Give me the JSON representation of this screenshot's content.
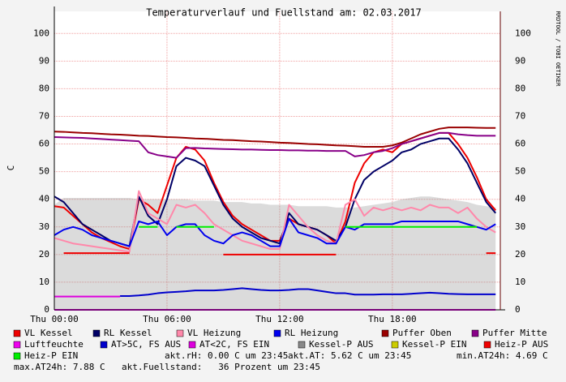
{
  "chart_data": {
    "type": "line",
    "title": "Temperaturverlauf und Fuellstand am: 02.03.2017",
    "y_label": "C",
    "watermark": "RRDTOOL / TOBI OETIKER",
    "x": [
      0,
      0.5,
      1,
      1.5,
      2,
      2.5,
      3,
      3.5,
      4,
      4.5,
      5,
      5.5,
      6,
      6.5,
      7,
      7.5,
      8,
      8.5,
      9,
      9.5,
      10,
      10.5,
      11,
      11.5,
      12,
      12.5,
      13,
      13.5,
      14,
      14.5,
      15,
      15.5,
      16,
      16.5,
      17,
      17.5,
      18,
      18.5,
      19,
      19.5,
      20,
      20.5,
      21,
      21.5,
      22,
      22.5,
      23,
      23.5
    ],
    "xlim": [
      0,
      23.75
    ],
    "xticks": [
      {
        "value": 0,
        "label": "Thu 00:00"
      },
      {
        "value": 6,
        "label": "Thu 06:00"
      },
      {
        "value": 12,
        "label": "Thu 12:00"
      },
      {
        "value": 18,
        "label": "Thu 18:00"
      }
    ],
    "ylim": [
      0,
      108
    ],
    "yticks": [
      0,
      10,
      20,
      30,
      40,
      50,
      60,
      70,
      80,
      90,
      100
    ],
    "grid": true,
    "series": [
      {
        "name": "VL Kessel",
        "color": "#ee0000",
        "values": [
          37.5,
          37,
          34,
          31,
          28,
          26,
          24.5,
          23,
          22,
          40,
          38,
          35,
          45,
          55,
          59,
          58,
          54,
          46,
          39,
          34,
          31,
          29,
          27,
          25,
          25,
          33,
          31,
          30,
          29,
          27,
          24,
          32,
          46,
          53,
          57,
          58,
          57,
          60,
          61,
          62,
          63,
          64,
          64,
          60,
          55,
          48,
          40,
          36
        ]
      },
      {
        "name": "RL Kessel",
        "color": "#000066",
        "values": [
          41,
          39,
          35,
          31,
          29,
          27,
          25,
          24,
          23,
          41,
          34,
          31,
          40,
          52,
          55,
          54,
          52,
          45,
          38,
          33,
          30,
          28,
          26,
          25,
          24,
          35,
          31,
          30,
          29,
          27,
          25,
          30,
          40,
          47,
          50,
          52,
          54,
          57,
          58,
          60,
          61,
          62,
          62,
          58,
          53,
          46,
          39,
          35
        ]
      },
      {
        "name": "VL Heizung",
        "color": "#ff88aa",
        "values": [
          26,
          25,
          24,
          23.5,
          23,
          22.5,
          22,
          21.5,
          21,
          43,
          35,
          33,
          31,
          38,
          37,
          38,
          35,
          31,
          29,
          27,
          25,
          24,
          23,
          22,
          22,
          38,
          34,
          30,
          27,
          25,
          24,
          38,
          40,
          34,
          37,
          36,
          37,
          36,
          37,
          36,
          38,
          37,
          37,
          35,
          37,
          33,
          30,
          28
        ]
      },
      {
        "name": "RL Heizung",
        "color": "#0000ee",
        "values": [
          27,
          29,
          30,
          29,
          27,
          26,
          25,
          24,
          23,
          32,
          31,
          32,
          27,
          30,
          31,
          31,
          27,
          25,
          24,
          27,
          28,
          27,
          25,
          23,
          23,
          33,
          28,
          27,
          26,
          24,
          24,
          30,
          29,
          31,
          31,
          31,
          31,
          32,
          32,
          32,
          32,
          32,
          32,
          32,
          31,
          30,
          29,
          31
        ]
      },
      {
        "name": "Puffer Oben",
        "color": "#990000",
        "values": [
          64.5,
          64.4,
          64.2,
          64,
          63.9,
          63.7,
          63.5,
          63.4,
          63.2,
          63,
          62.9,
          62.7,
          62.5,
          62.4,
          62.2,
          62,
          61.9,
          61.7,
          61.5,
          61.4,
          61.2,
          61,
          60.9,
          60.7,
          60.5,
          60.4,
          60.2,
          60,
          59.9,
          59.7,
          59.5,
          59.4,
          59.2,
          59,
          59,
          59,
          59.5,
          60.5,
          62,
          63.5,
          64.5,
          65.5,
          66,
          66,
          66,
          65.9,
          65.8,
          65.8
        ]
      },
      {
        "name": "Puffer Mitte",
        "color": "#880088",
        "values": [
          62.5,
          62.4,
          62.3,
          62.2,
          62,
          61.8,
          61.6,
          61.4,
          61.2,
          61,
          57,
          56,
          55.5,
          55,
          58.5,
          58.6,
          58.4,
          58.3,
          58.2,
          58.1,
          58,
          58,
          57.9,
          57.8,
          57.8,
          57.7,
          57.7,
          57.6,
          57.6,
          57.5,
          57.5,
          57.5,
          55.5,
          56,
          57,
          57.5,
          58.5,
          60,
          61,
          62,
          63,
          64,
          64,
          63.5,
          63.2,
          63,
          63,
          63
        ]
      },
      {
        "name": "Luftfeuchte",
        "color": "#ee00ee",
        "values": [
          0,
          0,
          0,
          0,
          0,
          0,
          0,
          0,
          0,
          0,
          0,
          0,
          0,
          0,
          0,
          0,
          0,
          0,
          0,
          0,
          0,
          0,
          0,
          0,
          0,
          0,
          0,
          0,
          0,
          0,
          0,
          0,
          0,
          0,
          0,
          0,
          0,
          0,
          0,
          0,
          0,
          0,
          0,
          0,
          0,
          0,
          0,
          0
        ]
      },
      {
        "name": "AT>5C, FS AUS",
        "color": "#0000cc",
        "values": [
          null,
          null,
          null,
          null,
          null,
          null,
          null,
          5,
          5,
          5.2,
          5.5,
          6,
          6.3,
          6.5,
          6.7,
          7,
          7,
          7,
          7.2,
          7.5,
          7.8,
          7.5,
          7.2,
          7,
          7,
          7.2,
          7.5,
          7.5,
          7,
          6.5,
          6,
          6,
          5.5,
          5.5,
          5.5,
          5.6,
          5.6,
          5.6,
          5.8,
          6,
          6.2,
          6,
          5.8,
          5.7,
          5.6,
          5.6,
          5.6,
          5.6
        ]
      },
      {
        "name": "AT<2C, FS EIN",
        "color": "#dd00dd",
        "values": [
          4.8,
          4.8,
          4.8,
          4.8,
          4.8,
          4.8,
          4.8,
          4.8,
          null,
          null,
          null,
          null,
          null,
          null,
          null,
          null,
          null,
          null,
          null,
          null,
          null,
          null,
          null,
          null,
          null,
          null,
          null,
          null,
          null,
          null,
          null,
          null,
          null,
          null,
          null,
          null,
          null,
          null,
          null,
          null,
          null,
          null,
          null,
          null,
          null,
          null,
          null,
          null
        ]
      },
      {
        "name": "Kessel-P AUS",
        "color": "#888888",
        "area": true,
        "values": [
          38,
          40.5,
          40.5,
          40.5,
          40.5,
          40.5,
          40.5,
          40.5,
          40.5,
          40,
          40,
          40,
          40,
          40,
          40,
          39.5,
          39.5,
          39.5,
          39,
          39,
          39,
          38.5,
          38.5,
          38,
          38,
          38,
          37.5,
          37.5,
          37.5,
          37.5,
          37,
          37,
          37,
          37.5,
          38,
          38.5,
          39,
          40,
          40.5,
          41,
          41,
          40.5,
          40,
          39.5,
          39,
          38,
          37.5,
          37
        ]
      },
      {
        "name": "Kessel-P EIN",
        "color": "#cccc00",
        "values": [
          null,
          null,
          null,
          null,
          null,
          null,
          null,
          null,
          null,
          null,
          null,
          null,
          null,
          null,
          null,
          null,
          null,
          null,
          null,
          null,
          null,
          null,
          null,
          null,
          null,
          null,
          null,
          null,
          null,
          null,
          null,
          null,
          null,
          null,
          null,
          null,
          null,
          null,
          null,
          null,
          null,
          null,
          null,
          null,
          30,
          30,
          null,
          null
        ]
      },
      {
        "name": "Heiz-P AUS",
        "color": "#ee0000",
        "values": [
          null,
          20.5,
          20.5,
          20.5,
          20.5,
          20.5,
          20.5,
          20.5,
          20.5,
          null,
          null,
          null,
          20.5,
          null,
          null,
          null,
          null,
          null,
          20,
          20,
          20,
          20,
          20,
          20,
          20,
          20,
          20,
          20,
          20,
          20,
          20,
          null,
          null,
          null,
          null,
          null,
          null,
          null,
          null,
          null,
          null,
          null,
          null,
          null,
          null,
          null,
          20.5,
          20.5
        ]
      },
      {
        "name": "Heiz-P EIN",
        "color": "#00ee00",
        "values": [
          null,
          null,
          null,
          null,
          null,
          null,
          null,
          null,
          null,
          30,
          30,
          30,
          null,
          30,
          30,
          30,
          30,
          30,
          null,
          null,
          null,
          null,
          null,
          null,
          null,
          null,
          null,
          null,
          null,
          null,
          null,
          30,
          30,
          30,
          30,
          30,
          30,
          30,
          30,
          30,
          30,
          30,
          30,
          30,
          30,
          30,
          null,
          null
        ]
      }
    ],
    "stats": [
      "akt.rH: 0.00 C um 23:45",
      "akt.AT: 5.62 C um 23:45",
      "min.AT24h: 4.69 C",
      "max.AT24h: 7.88 C",
      "akt.Fuellstand:   36 Prozent um 23:45"
    ]
  }
}
